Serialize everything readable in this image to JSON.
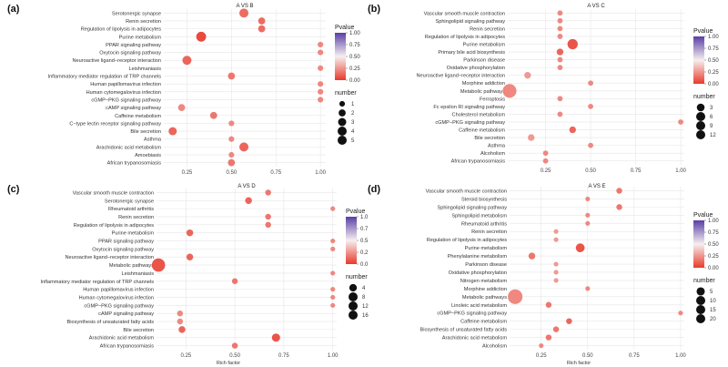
{
  "colors": {
    "grid": "#e6e6e6",
    "low": "#e8392b",
    "mid": "#f6efef",
    "high": "#5a3fa6"
  },
  "legend_titles": {
    "pvalue": "Pvalue",
    "number": "number"
  },
  "chart_data": [
    {
      "type": "scatter",
      "label": "(a)",
      "title": "A VS B",
      "xlabel": "",
      "xlim": [
        0.12,
        1.03
      ],
      "xticks": [
        "0.25",
        "0.50",
        "0.75",
        "1.00"
      ],
      "xtick_values": [
        0.25,
        0.5,
        0.75,
        1.0
      ],
      "pvalue_ticks": [
        "1.00",
        "0.75",
        "0.50",
        "0.25",
        "0.00"
      ],
      "number_ticks": [
        1,
        2,
        3,
        4,
        5
      ],
      "number_labels": [
        "1",
        "2",
        "3",
        "4",
        "5"
      ],
      "categories": [
        "Serotonergic synapse",
        "Renin secretion",
        "Regulation of lipolysis in adipocytes",
        "Purine metabolism",
        "PPAR signaling pathway",
        "Oxytocin signaling pathway",
        "Neuroactive ligand−receptor interaction",
        "Leishmaniasis",
        "Inflammatory mediator regulation of TRP channels",
        "Human papillomavirus infection",
        "Human cytomegalovirus infection",
        "cGMP−PKG signaling pathway",
        "cAMP signaling pathway",
        "Caffeine metabolism",
        "C−type lectin receptor signaling pathway",
        "Bile secretion",
        "Asthma",
        "Arachidonic acid metabolism",
        "Amoebiasis",
        "African trypanosomiasis"
      ],
      "rich_factor": [
        0.57,
        0.67,
        0.67,
        0.33,
        1.0,
        1.0,
        0.25,
        1.0,
        0.5,
        1.0,
        1.0,
        1.0,
        0.22,
        0.4,
        0.5,
        0.17,
        0.5,
        0.57,
        0.5,
        0.5
      ],
      "number": [
        4,
        2,
        2,
        5,
        1,
        1,
        4,
        1,
        2,
        1,
        1,
        1,
        2,
        2,
        1,
        3,
        1,
        4,
        1,
        2
      ],
      "pvalue": [
        0.12,
        0.12,
        0.12,
        0.02,
        0.2,
        0.2,
        0.1,
        0.2,
        0.15,
        0.2,
        0.2,
        0.2,
        0.2,
        0.15,
        0.2,
        0.1,
        0.2,
        0.1,
        0.2,
        0.15
      ]
    },
    {
      "type": "scatter",
      "label": "(b)",
      "title": "A VS C",
      "xlabel": "",
      "xlim": [
        0.04,
        1.02
      ],
      "xticks": [
        "0.25",
        "0.50",
        "0.75",
        "1.00"
      ],
      "xtick_values": [
        0.25,
        0.5,
        0.75,
        1.0
      ],
      "pvalue_ticks": [
        "1.00",
        "0.75",
        "0.50",
        "0.25",
        "0.00"
      ],
      "number_ticks": [
        3,
        6,
        9,
        12
      ],
      "number_labels": [
        "3",
        "6",
        "9",
        "12"
      ],
      "categories": [
        "Vascular smooth muscle contraction",
        "Sphingolipid signaling pathway",
        "Renin secretion",
        "Regulation of lipolysis in adipocytes",
        "Purine metabolism",
        "Primary bile acid biosynthesis",
        "Parkinson disease",
        "Oxidative phosphorylation",
        "Neuroactive ligand−receptor interaction",
        "Morphine addiction",
        "Metabolic pathways",
        "Ferroptosis",
        "Fc epsilon RI signaling pathway",
        "Cholesterol metabolism",
        "cGMP−PKG signaling pathway",
        "Caffeine metabolism",
        "Bile secretion",
        "Asthma",
        "Alcoholism",
        "African trypanosomiasis"
      ],
      "rich_factor": [
        0.33,
        0.33,
        0.33,
        0.33,
        0.4,
        0.33,
        0.33,
        0.33,
        0.15,
        0.5,
        0.05,
        0.33,
        0.5,
        0.33,
        1.0,
        0.4,
        0.17,
        0.5,
        0.25,
        0.25
      ],
      "number": [
        1,
        1,
        1,
        1,
        6,
        2,
        1,
        1,
        2,
        1,
        12,
        1,
        1,
        1,
        1,
        2,
        2,
        1,
        1,
        1
      ],
      "pvalue": [
        0.2,
        0.2,
        0.2,
        0.2,
        0.05,
        0.1,
        0.2,
        0.2,
        0.25,
        0.2,
        0.2,
        0.2,
        0.2,
        0.2,
        0.2,
        0.1,
        0.25,
        0.2,
        0.2,
        0.2
      ]
    },
    {
      "type": "scatter",
      "label": "(c)",
      "title": "A VS D",
      "xlabel": "Rich factor",
      "xlim": [
        0.1,
        1.02
      ],
      "xticks": [
        "0.25",
        "0.50",
        "0.75",
        "1.00"
      ],
      "xtick_values": [
        0.25,
        0.5,
        0.75,
        1.0
      ],
      "pvalue_ticks": [
        "1.0",
        "0.7",
        "0.5",
        "0.2",
        "0.0"
      ],
      "number_ticks": [
        4,
        8,
        12,
        16
      ],
      "number_labels": [
        "4",
        "8",
        "12",
        "16"
      ],
      "categories": [
        "Vascular smooth muscle contraction",
        "Serotonergic synapse",
        "Rheumatoid arthritis",
        "Renin secretion",
        "Regulation of lipolysis in adipocytes",
        "Purine metabolism",
        "PPAR signaling pathway",
        "Oxytocin signaling pathway",
        "Neuroactive ligand−receptor interaction",
        "Metabolic pathways",
        "Leishmaniasis",
        "Inflammatory mediator regulation of TRP channels",
        "Human papillomavirus infection",
        "Human cytomegalovirus infection",
        "cGMP−PKG signaling pathway",
        "cAMP signaling pathway",
        "Biosynthesis of unsaturated fatty acids",
        "Bile secretion",
        "Arachidonic acid metabolism",
        "African trypanosomiasis"
      ],
      "rich_factor": [
        0.67,
        0.57,
        1.0,
        0.67,
        0.67,
        0.27,
        1.0,
        1.0,
        0.27,
        0.11,
        1.0,
        0.5,
        1.0,
        1.0,
        1.0,
        0.22,
        0.22,
        0.23,
        0.71,
        0.5
      ],
      "number": [
        2,
        3,
        1,
        2,
        2,
        3,
        1,
        1,
        3,
        16,
        1,
        2,
        1,
        1,
        1,
        2,
        2,
        3,
        5,
        2
      ],
      "pvalue": [
        0.15,
        0.1,
        0.2,
        0.15,
        0.15,
        0.1,
        0.2,
        0.2,
        0.1,
        0.05,
        0.2,
        0.15,
        0.2,
        0.2,
        0.2,
        0.2,
        0.2,
        0.1,
        0.05,
        0.15
      ]
    },
    {
      "type": "scatter",
      "label": "(d)",
      "title": "A VS E",
      "xlabel": "Rich factor",
      "xlim": [
        0.08,
        1.02
      ],
      "xticks": [
        "0.25",
        "0.50",
        "0.75",
        "1.00"
      ],
      "xtick_values": [
        0.25,
        0.5,
        0.75,
        1.0
      ],
      "pvalue_ticks": [
        "1.00",
        "0.75",
        "0.50",
        "0.25",
        "0.00"
      ],
      "number_ticks": [
        5,
        10,
        15,
        20
      ],
      "number_labels": [
        "5",
        "10",
        "15",
        "20"
      ],
      "categories": [
        "Vascular smooth muscle contraction",
        "Steroid biosynthesis",
        "Sphingolipid signaling pathway",
        "Sphingolipid metabolism",
        "Rheumatoid arthritis",
        "Renin secretion",
        "Regulation of lipolysis in adipocytes",
        "Purine metabolism",
        "Phenylalanine metabolism",
        "Parkinson disease",
        "Oxidative phosphorylation",
        "Nitrogen metabolism",
        "Morphine addiction",
        "Metabolic pathways",
        "Linoleic acid metabolism",
        "cGMP−PKG signaling pathway",
        "Caffeine metabolism",
        "Biosynthesis of unsaturated fatty acids",
        "Arachidonic acid metabolism",
        "Alcoholism"
      ],
      "rich_factor": [
        0.67,
        0.5,
        0.67,
        0.5,
        0.5,
        0.33,
        0.33,
        0.46,
        0.2,
        0.33,
        0.33,
        0.33,
        0.5,
        0.11,
        0.29,
        1.0,
        0.4,
        0.33,
        0.29,
        0.25
      ],
      "number": [
        2,
        1,
        2,
        1,
        1,
        1,
        1,
        6,
        3,
        1,
        1,
        1,
        1,
        20,
        2,
        1,
        2,
        2,
        2,
        1
      ],
      "pvalue": [
        0.15,
        0.2,
        0.15,
        0.2,
        0.2,
        0.25,
        0.25,
        0.05,
        0.15,
        0.25,
        0.25,
        0.25,
        0.2,
        0.2,
        0.15,
        0.2,
        0.1,
        0.15,
        0.15,
        0.2
      ]
    }
  ]
}
